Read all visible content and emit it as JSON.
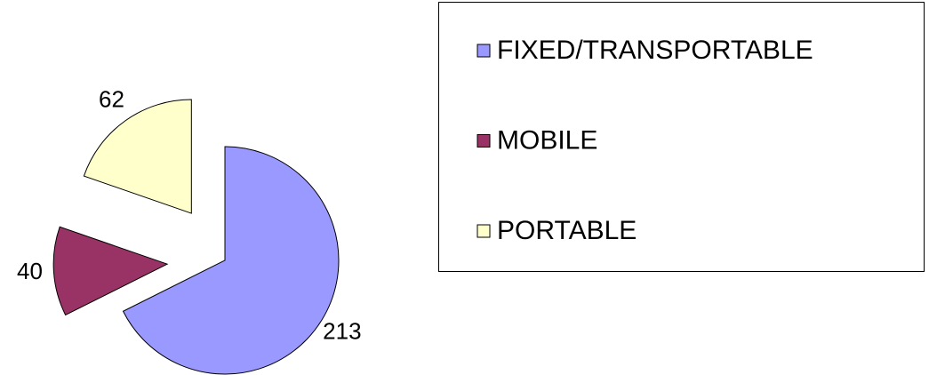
{
  "chart_data": {
    "type": "pie",
    "categories": [
      "FIXED/TRANSPORTABLE",
      "MOBILE",
      "PORTABLE"
    ],
    "values": [
      213,
      40,
      62
    ],
    "colors": [
      "#9999ff",
      "#993366",
      "#ffffcc"
    ],
    "legend": "right"
  }
}
